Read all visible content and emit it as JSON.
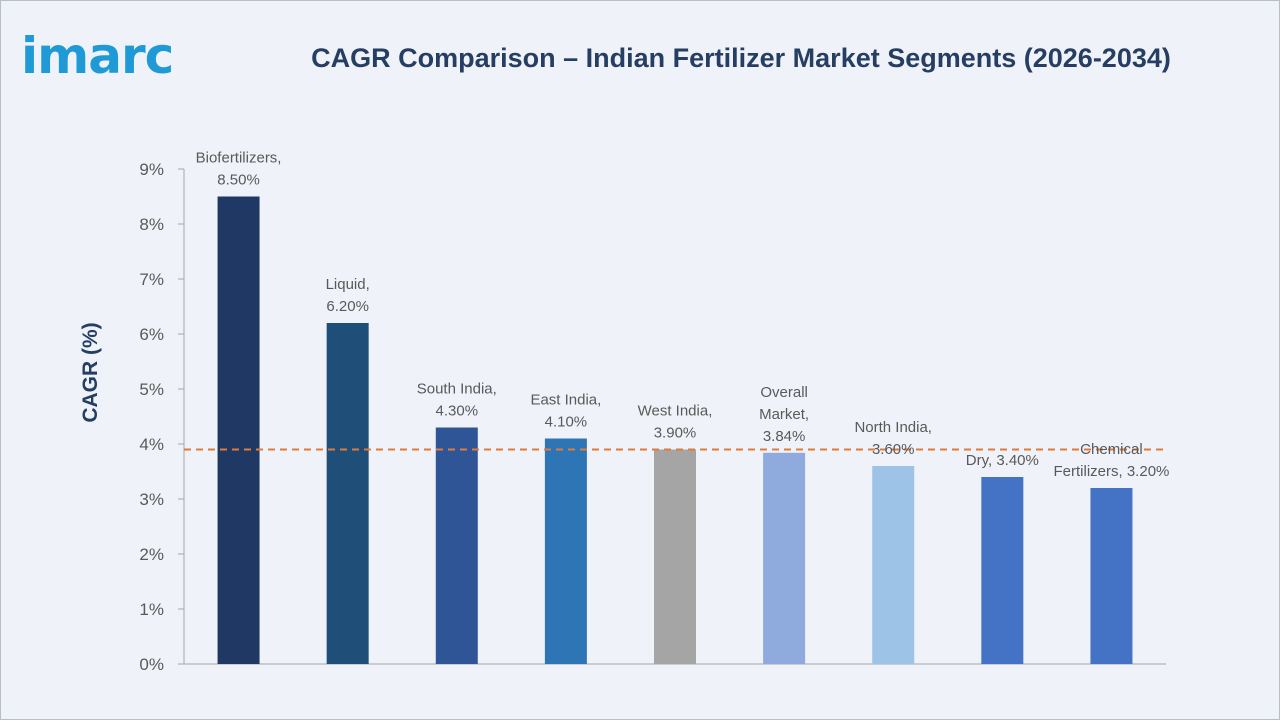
{
  "brand": {
    "logo_text": "imarc"
  },
  "title": "CAGR Comparison – Indian Fertilizer Market Segments (2026-2034)",
  "chart_data": {
    "type": "bar",
    "title": "CAGR Comparison – Indian Fertilizer Market Segments (2026-2034)",
    "ylabel": "CAGR (%)",
    "xlabel": "",
    "ylim": [
      0,
      9
    ],
    "yticks": [
      "0%",
      "1%",
      "2%",
      "3%",
      "4%",
      "5%",
      "6%",
      "7%",
      "8%",
      "9%"
    ],
    "grid": false,
    "categories": [
      "Biofertilizers",
      "Liquid",
      "South India",
      "East India",
      "West India",
      "Overall Market",
      "North India",
      "Dry",
      "Chemical Fertilizers"
    ],
    "values": [
      8.5,
      6.2,
      4.3,
      4.1,
      3.9,
      3.84,
      3.6,
      3.4,
      3.2
    ],
    "data_labels": [
      [
        "Biofertilizers,",
        "8.50%"
      ],
      [
        "Liquid,",
        "6.20%"
      ],
      [
        "South India,",
        "4.30%"
      ],
      [
        "East India,",
        "4.10%"
      ],
      [
        "West India,",
        "3.90%"
      ],
      [
        "Overall",
        "Market,",
        "3.84%"
      ],
      [
        "North India,",
        "3.60%"
      ],
      [
        "Dry, 3.40%"
      ],
      [
        "Chemical",
        "Fertilizers, 3.20%"
      ]
    ],
    "colors": [
      "#1f3864",
      "#1f4e79",
      "#2f5597",
      "#2e75b6",
      "#a5a5a5",
      "#8faadc",
      "#9dc3e6",
      "#4472c4",
      "#4472c4"
    ],
    "reference_line": {
      "value": 3.9,
      "color": "#e07b39",
      "style": "dashed"
    }
  }
}
